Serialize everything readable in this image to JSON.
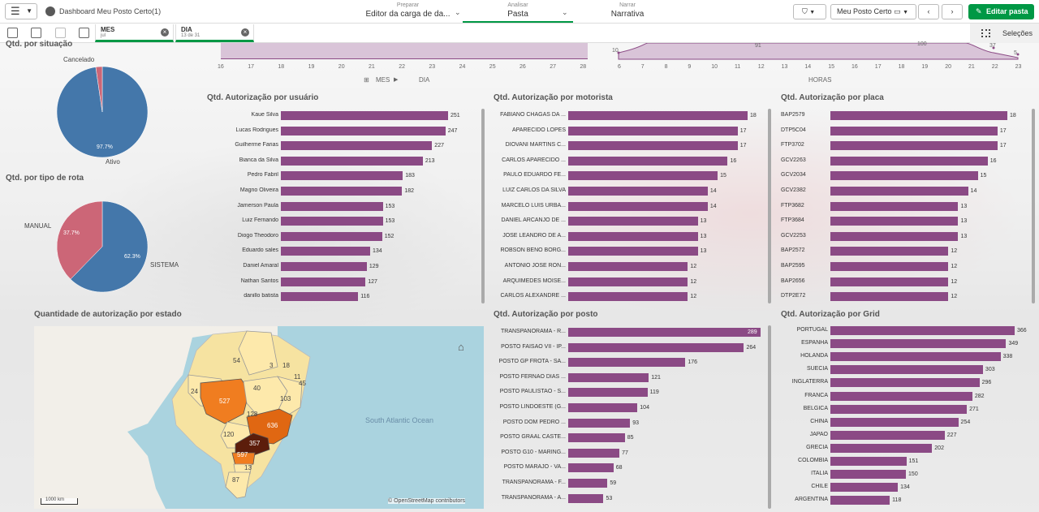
{
  "header": {
    "app_title": "Dashboard Meu Posto Certo(1)",
    "nav_prepare_small": "Preparar",
    "nav_prepare": "Editor da carga de da...",
    "nav_analyze_small": "Analisar",
    "nav_analyze": "Pasta",
    "nav_narrate_small": "Narrar",
    "nav_narrate": "Narrativa",
    "sheet_name": "Meu Posto Certo",
    "edit_label": "Editar pasta",
    "selections_label": "Seleções"
  },
  "filters": [
    {
      "title": "MES",
      "value": "jul"
    },
    {
      "title": "DIA",
      "value": "13 de 31"
    }
  ],
  "top_day_chart": {
    "ticks": [
      "16",
      "17",
      "18",
      "19",
      "20",
      "21",
      "22",
      "23",
      "24",
      "25",
      "26",
      "27",
      "28"
    ],
    "drill_label_1": "MES",
    "drill_label_2": "DIA"
  },
  "top_hour_chart": {
    "ticks": [
      "6",
      "7",
      "8",
      "9",
      "10",
      "11",
      "12",
      "13",
      "14",
      "15",
      "16",
      "17",
      "18",
      "19",
      "20",
      "21",
      "22",
      "23"
    ],
    "xlabel": "HORAS",
    "point_labels": [
      "10",
      "91",
      "100",
      "37",
      "5"
    ]
  },
  "status_pie": {
    "title": "Qtd. por situação",
    "slices": [
      {
        "label": "Ativo",
        "value": 97.7,
        "pct_label": "97.7%",
        "color": "#4477aa"
      },
      {
        "label": "Cancelado",
        "value": 2.3,
        "pct_label": "",
        "color": "#cc6677"
      }
    ]
  },
  "route_pie": {
    "title": "Qtd. por tipo de rota",
    "slices": [
      {
        "label": "SISTEMA",
        "value": 62.3,
        "pct_label": "62.3%",
        "color": "#4477aa"
      },
      {
        "label": "MANUAL",
        "value": 37.7,
        "pct_label": "37.7%",
        "color": "#cc6677"
      }
    ]
  },
  "chart_data": [
    {
      "type": "bar",
      "title": "Qtd. Autorização por usuário",
      "categories": [
        "Kaue Silva",
        "Lucas Rodrigues",
        "Guilherme Farias",
        "Bianca da Silva",
        "Pedro Fabril",
        "Magno Oliveira",
        "Jamerson Paula",
        "Luiz Fernando",
        "Diogo Theodoro",
        "Eduardo sales",
        "Daniel Amaral",
        "Nathan Santos",
        "danillo batista"
      ],
      "values": [
        251,
        247,
        227,
        213,
        183,
        182,
        153,
        153,
        152,
        134,
        129,
        127,
        116
      ]
    },
    {
      "type": "bar",
      "title": "Qtd. Autorização por motorista",
      "categories": [
        "FABIANO CHAGAS DA ...",
        "APARECIDO LOPES",
        "DIOVANI MARTINS C...",
        "CARLOS APARECIDO ...",
        "PAULO EDUARDO FE...",
        "LUIZ CARLOS DA SILVA",
        "MARCELO LUIS URBA...",
        "DANIEL ARCANJO DE ...",
        "JOSE LEANDRO DE A...",
        "ROBSON BENO BORG...",
        "ANTONIO JOSE RON...",
        "ARQUIMEDES MOISE...",
        "CARLOS ALEXANDRE ..."
      ],
      "values": [
        18,
        17,
        17,
        16,
        15,
        14,
        14,
        13,
        13,
        13,
        12,
        12,
        12
      ]
    },
    {
      "type": "bar",
      "title": "Qtd. Autorização por placa",
      "categories": [
        "BAP2579",
        "DTP5C04",
        "FTP3702",
        "GCV2263",
        "GCV2034",
        "GCV2382",
        "FTP3682",
        "FTP3684",
        "GCV2253",
        "BAP2572",
        "BAP2595",
        "BAP2656",
        "DTP2E72"
      ],
      "values": [
        18,
        17,
        17,
        16,
        15,
        14,
        13,
        13,
        13,
        12,
        12,
        12,
        12
      ]
    },
    {
      "type": "bar",
      "title": "Qtd. Autorização por posto",
      "categories": [
        "TRANSPANORAMA - R...",
        "POSTO FAISAO VII - IP...",
        "POSTO GP FROTA - SA...",
        "POSTO FERNAO DIAS ...",
        "POSTO PAULISTAO - S...",
        "POSTO LINDOESTE (G...",
        "POSTO DOM PEDRO ...",
        "POSTO GRAAL CASTE...",
        "POSTO G10 - MARING...",
        "POSTO MARAJO - VA...",
        "TRANSPANORAMA - F...",
        "TRANSPANORAMA - A..."
      ],
      "values": [
        289,
        264,
        176,
        121,
        119,
        104,
        93,
        85,
        77,
        68,
        59,
        53
      ]
    },
    {
      "type": "bar",
      "title": "Qtd. Autorização por Grid",
      "categories": [
        "PORTUGAL",
        "ESPANHA",
        "HOLANDA",
        "SUECIA",
        "INGLATERRA",
        "FRANCA",
        "BELGICA",
        "CHINA",
        "JAPAO",
        "GRECIA",
        "COLOMBIA",
        "ITALIA",
        "CHILE",
        "ARGENTINA"
      ],
      "values": [
        366,
        349,
        338,
        303,
        296,
        282,
        271,
        254,
        227,
        202,
        151,
        150,
        134,
        118
      ]
    }
  ],
  "map": {
    "title": "Quantidade de autorização por estado",
    "ocean_label": "South Atlantic Ocean",
    "attribution": "© OpenStreetMap contributors",
    "scale_label": "1000 km",
    "state_labels": [
      "54",
      "3",
      "18",
      "11",
      "45",
      "40",
      "24",
      "527",
      "103",
      "128",
      "636",
      "120",
      "357",
      "597",
      "13",
      "87"
    ]
  }
}
